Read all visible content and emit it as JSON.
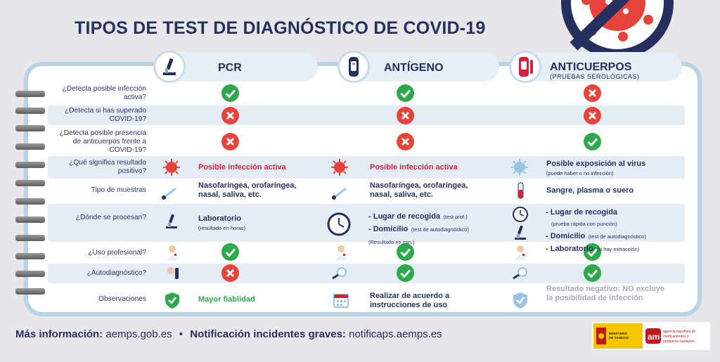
{
  "title": "TIPOS DE TEST DE DIAGNÓSTICO DE COVID-19",
  "columns": {
    "pcr": {
      "label": "PCR"
    },
    "antigeno": {
      "label": "ANTÍGENO"
    },
    "anticuerpos": {
      "label": "ANTICUERPOS",
      "sub": "(PRUEBAS SEROLÓGICAS)"
    }
  },
  "questions": {
    "q1": "¿Detecta posible infección activa?",
    "q2": "¿Detecta si has superado COVID-19?",
    "q3": "¿Detecta posible presencia de anticuerpos frente a COVID-19?",
    "q4": "¿Qué significa resultado positivo?",
    "q5": "Tipo de muestras",
    "q6": "¿Dónde se procesan?",
    "q7": "¿Uso profesional?",
    "q8": "¿Autodiagnóstico?",
    "q9": "Observaciones"
  },
  "answers": {
    "pcr_positive": "Posible infección activa",
    "ant_positive": "Posible infección activa",
    "anti_positive": "Posible exposición al virus",
    "anti_positive_note": "(puede haber o no infección)",
    "pcr_samples": "Nasofaríngea, orofaríngea, nasal, saliva, etc.",
    "ant_samples": "Nasofaríngea, orofaríngea, nasal, saliva, etc.",
    "anti_samples": "Sangre, plasma o suero",
    "pcr_where": "Laboratorio",
    "pcr_where_note": "(resultado en horas)",
    "ant_where_1": "- Lugar de recogida",
    "ant_where_1_note": "(test prof.)",
    "ant_where_2": "- Domicilio",
    "ant_where_2_note": "(test de autodiagnóstico)",
    "ant_where_3_note": "(Resultado en min.)",
    "anti_where_1": "- Lugar de recogida",
    "anti_where_1_note": "(prueba rápida con punción)",
    "anti_where_2": "- Domicilio",
    "anti_where_2_note": "(test de autodiagnóstico)",
    "anti_where_3": "- Laboratorio",
    "anti_where_3_note": "(si hay extracción)",
    "pcr_obs": "Mayor fiablidad",
    "ant_obs": "Realizar de acuerdo a instrucciones de uso",
    "anti_obs": "Resultado negativo: NO excluye la posibilidad de infección"
  },
  "footer": {
    "info_label": "Más información:",
    "info_value": "aemps.gob.es",
    "sep": "•",
    "notif_label": "Notificación incidentes graves:",
    "notif_value": "notificaps.aemps.es"
  },
  "logos": {
    "ministry": "MINISTERIO DE SANIDAD",
    "agency": "agencia española de medicamentos y productos sanitarios"
  },
  "colors": {
    "navy": "#26305e",
    "green": "#2da84b",
    "red": "#d8203a",
    "band": "#e4edf6",
    "border": "#b8d3e6"
  }
}
